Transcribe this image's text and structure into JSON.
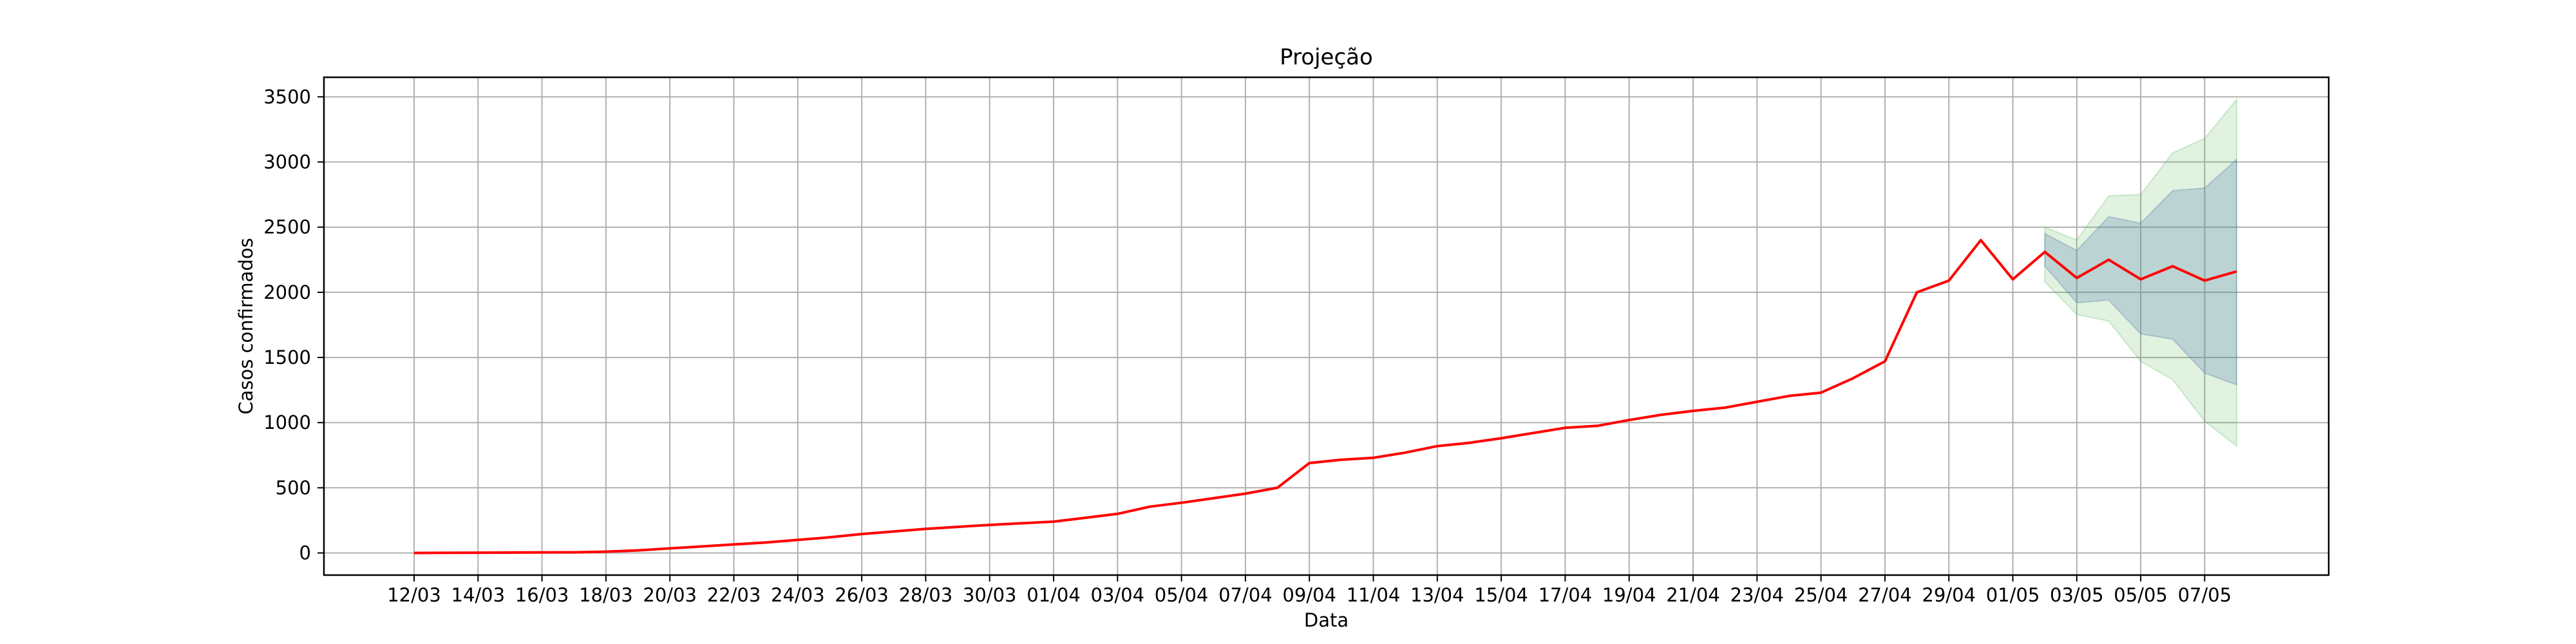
{
  "chart_data": {
    "type": "line",
    "title": "Projeção",
    "xlabel": "Data",
    "ylabel": "Casos confirmados",
    "ylim": [
      -170,
      3650
    ],
    "yticks": [
      0,
      500,
      1000,
      1500,
      2000,
      2500,
      3000,
      3500
    ],
    "grid": true,
    "xtick_labels": [
      "12/03",
      "14/03",
      "16/03",
      "18/03",
      "20/03",
      "22/03",
      "24/03",
      "26/03",
      "28/03",
      "30/03",
      "01/04",
      "03/04",
      "05/04",
      "07/04",
      "09/04",
      "11/04",
      "13/04",
      "15/04",
      "17/04",
      "19/04",
      "21/04",
      "23/04",
      "25/04",
      "27/04",
      "29/04",
      "01/05",
      "03/05",
      "05/05",
      "07/05"
    ],
    "x": [
      "12/03",
      "13/03",
      "14/03",
      "15/03",
      "16/03",
      "17/03",
      "18/03",
      "19/03",
      "20/03",
      "21/03",
      "22/03",
      "23/03",
      "24/03",
      "25/03",
      "26/03",
      "27/03",
      "28/03",
      "29/03",
      "30/03",
      "31/03",
      "01/04",
      "02/04",
      "03/04",
      "04/04",
      "05/04",
      "06/04",
      "07/04",
      "08/04",
      "09/04",
      "10/04",
      "11/04",
      "12/04",
      "13/04",
      "14/04",
      "15/04",
      "16/04",
      "17/04",
      "18/04",
      "19/04",
      "20/04",
      "21/04",
      "22/04",
      "23/04",
      "24/04",
      "25/04",
      "26/04",
      "27/04",
      "28/04",
      "29/04",
      "30/04",
      "01/05",
      "02/05",
      "03/05",
      "04/05",
      "05/05",
      "06/05",
      "07/05",
      "08/05"
    ],
    "series": [
      {
        "color": "#ff0000",
        "values": [
          0,
          1,
          2,
          3,
          4,
          5,
          10,
          20,
          35,
          50,
          65,
          80,
          100,
          120,
          145,
          165,
          185,
          200,
          215,
          228,
          240,
          270,
          300,
          355,
          385,
          420,
          455,
          500,
          690,
          715,
          730,
          770,
          820,
          845,
          880,
          920,
          960,
          975,
          1020,
          1060,
          1090,
          1115,
          1160,
          1205,
          1230,
          1340,
          1470,
          2000,
          2090,
          2400,
          2100,
          2310,
          2110,
          2250,
          2100,
          2200,
          2090,
          2160
        ]
      }
    ],
    "projection": {
      "x": [
        "02/05",
        "03/05",
        "04/05",
        "05/05",
        "06/05",
        "07/05",
        "08/05"
      ],
      "inner_band": {
        "color": "#4f77aa",
        "lower": [
          2200,
          1920,
          1940,
          1680,
          1640,
          1380,
          1290
        ],
        "upper": [
          2450,
          2320,
          2580,
          2530,
          2780,
          2800,
          3020
        ]
      },
      "outer_band": {
        "color": "#4caf50",
        "lower": [
          2080,
          1830,
          1780,
          1470,
          1330,
          1010,
          820
        ],
        "upper": [
          2500,
          2400,
          2740,
          2750,
          3070,
          3180,
          3480
        ]
      }
    }
  }
}
